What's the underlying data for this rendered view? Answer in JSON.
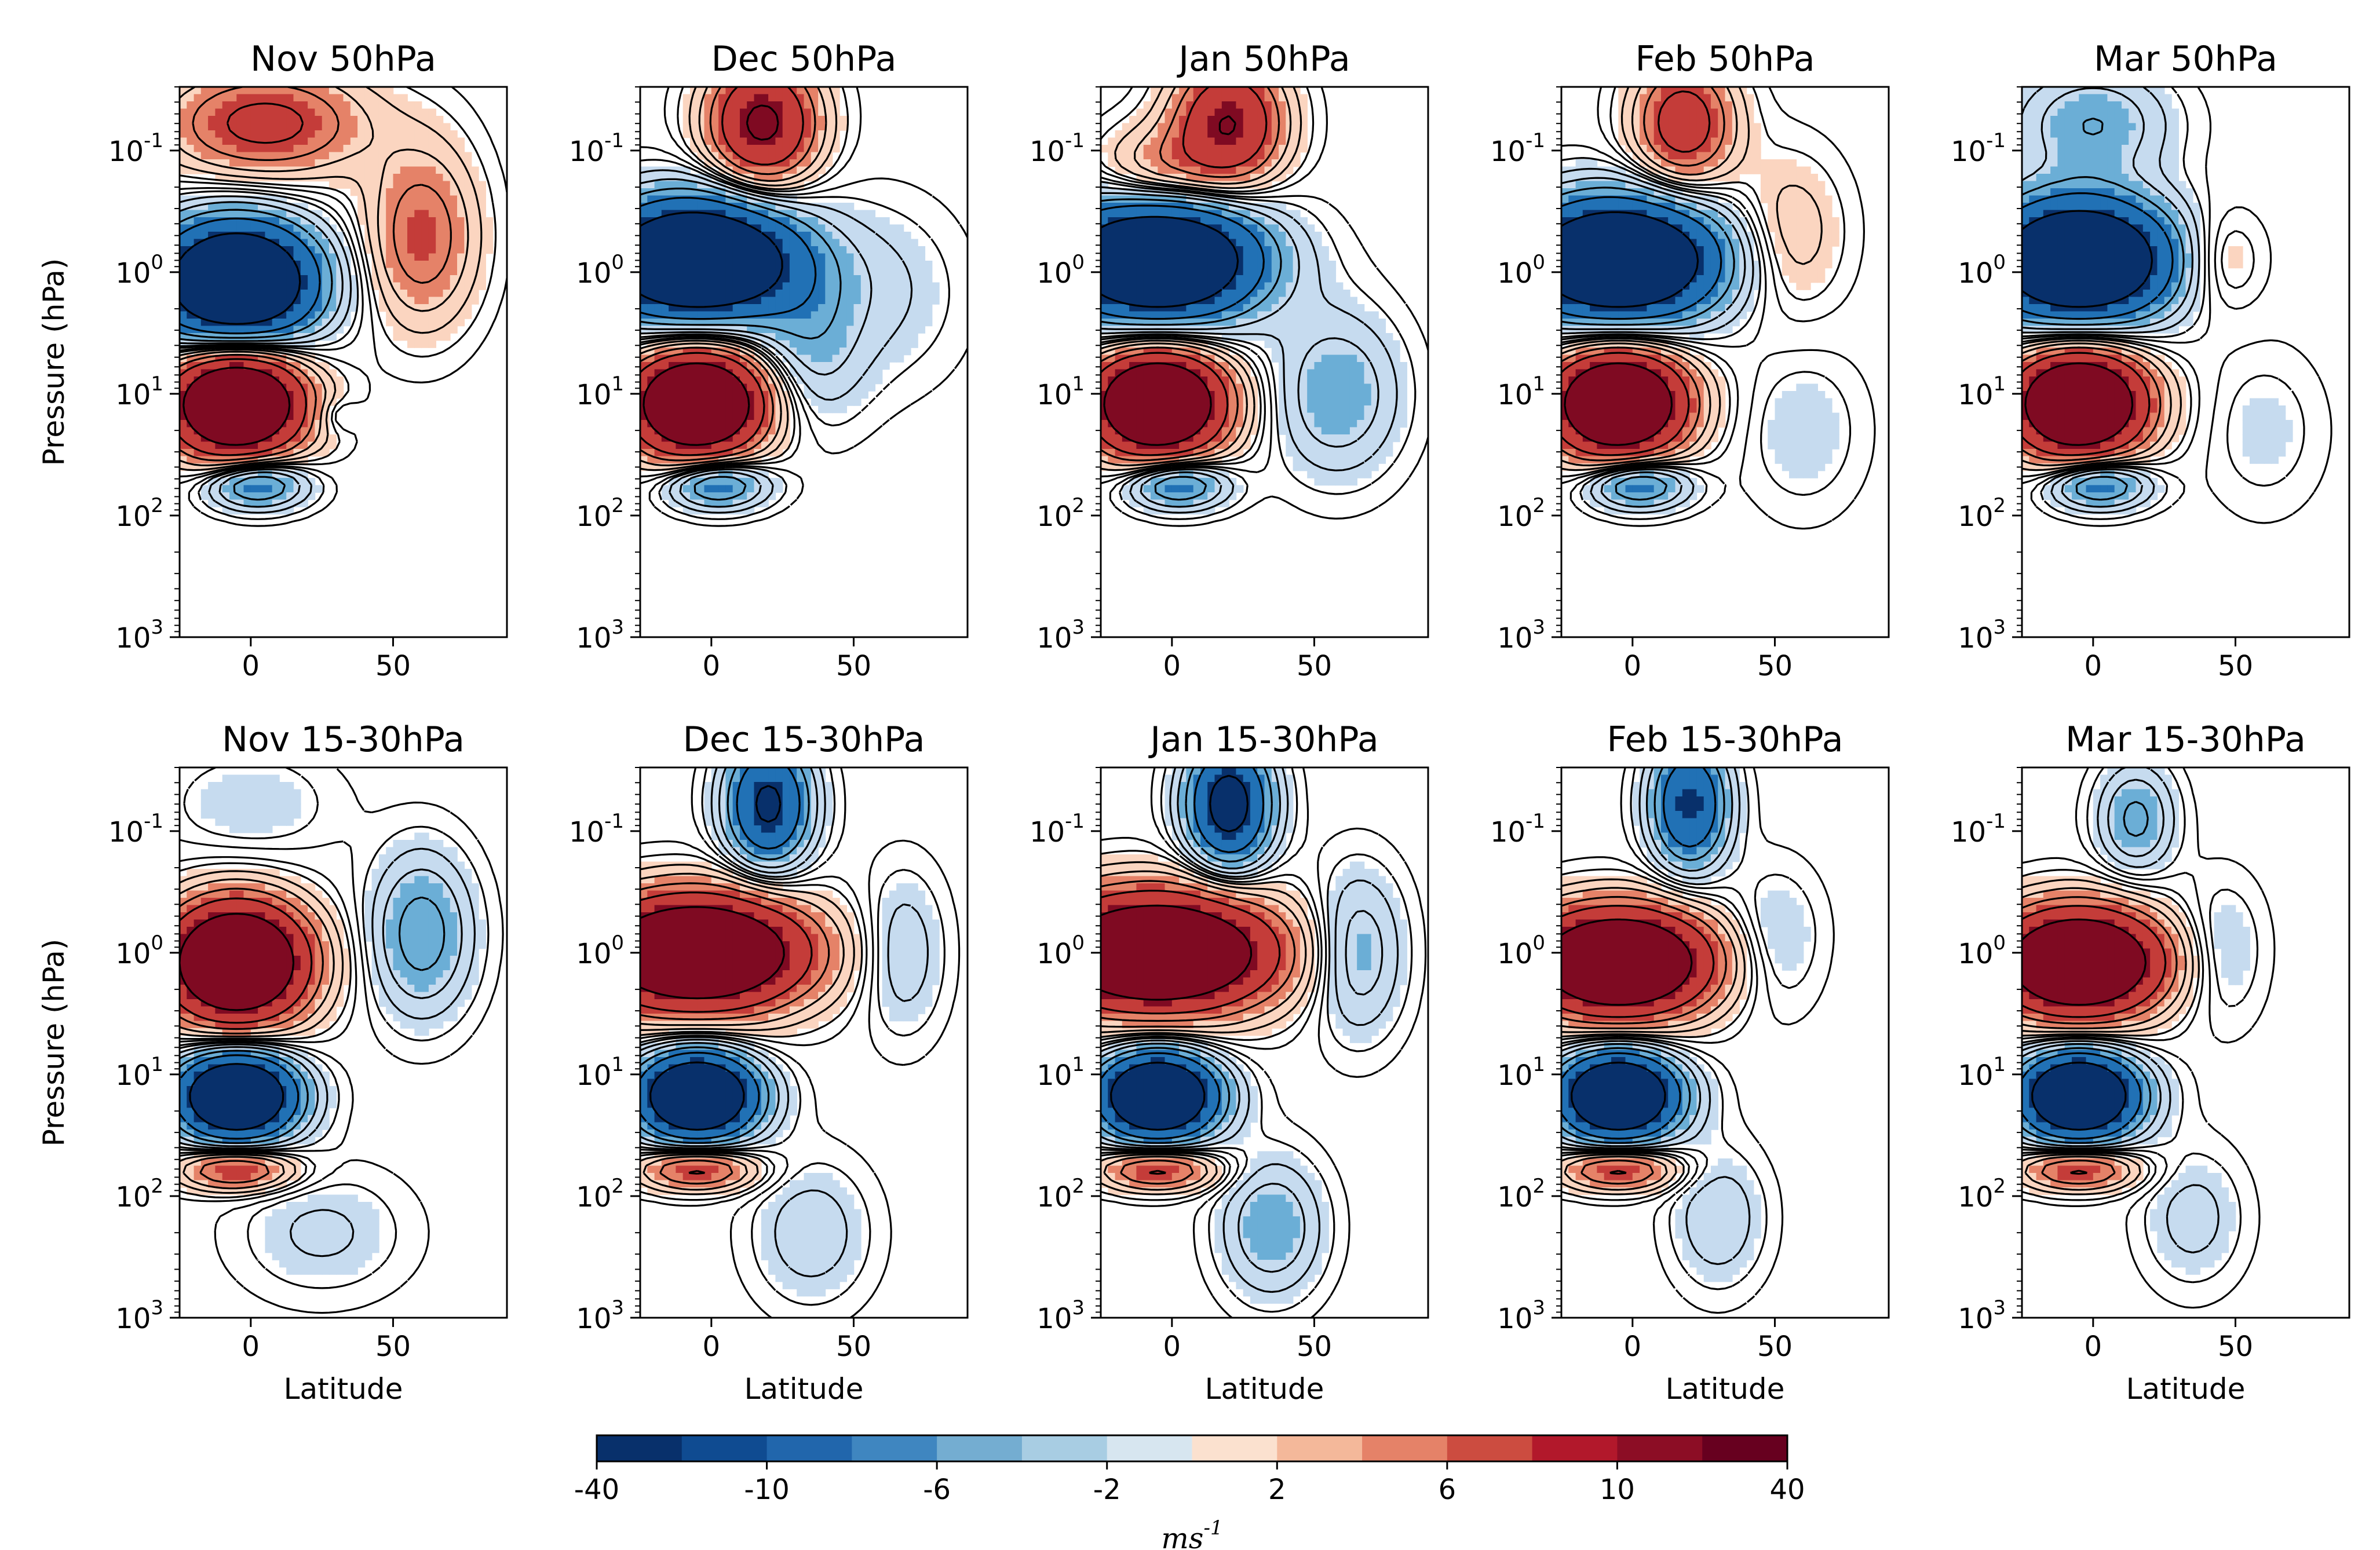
{
  "chart_data": {
    "type": "contour",
    "variable_units_label": "ms",
    "variable_units_exp": "-1",
    "colorbar": {
      "levels": [
        -40,
        -10,
        -6,
        -2,
        2,
        6,
        10,
        40
      ],
      "tick_labels": [
        "-40",
        "-10",
        "-6",
        "-2",
        "2",
        "6",
        "10",
        "40"
      ],
      "colors": [
        "#08306b",
        "#0d4a8f",
        "#2166ac",
        "#4a8cc3",
        "#92c5de",
        "#c6dbef",
        "#e6eff5",
        "#fbe5d6",
        "#f6c3a6",
        "#e8906e",
        "#d6604d",
        "#b2182b",
        "#8c0d25",
        "#67001f"
      ]
    },
    "x_axis": {
      "label": "Latitude",
      "range": [
        -25,
        90
      ],
      "ticks": [
        0,
        50
      ],
      "tick_labels": [
        "0",
        "50"
      ]
    },
    "y_axis": {
      "label": "Pressure (hPa)",
      "scale": "log",
      "inverted": true,
      "range": [
        1000,
        0.03
      ],
      "ticks": [
        0.1,
        1,
        10,
        100,
        1000
      ],
      "tick_labels": [
        [
          "10",
          "-1"
        ],
        [
          "10",
          "0"
        ],
        [
          "10",
          "1"
        ],
        [
          "10",
          "2"
        ],
        [
          "10",
          "3"
        ]
      ]
    },
    "panels": [
      {
        "title": "Nov 50hPa",
        "month": "Nov",
        "forcing": "50hPa",
        "row": 0
      },
      {
        "title": "Dec 50hPa",
        "month": "Dec",
        "forcing": "50hPa",
        "row": 0
      },
      {
        "title": "Jan 50hPa",
        "month": "Jan",
        "forcing": "50hPa",
        "row": 0
      },
      {
        "title": "Feb 50hPa",
        "month": "Feb",
        "forcing": "50hPa",
        "row": 0
      },
      {
        "title": "Mar 50hPa",
        "month": "Mar",
        "forcing": "50hPa",
        "row": 0
      },
      {
        "title": "Nov 15-30hPa",
        "month": "Nov",
        "forcing": "15-30hPa",
        "row": 1
      },
      {
        "title": "Dec 15-30hPa",
        "month": "Dec",
        "forcing": "15-30hPa",
        "row": 1
      },
      {
        "title": "Jan 15-30hPa",
        "month": "Jan",
        "forcing": "15-30hPa",
        "row": 1
      },
      {
        "title": "Feb 15-30hPa",
        "month": "Feb",
        "forcing": "15-30hPa",
        "row": 1
      },
      {
        "title": "Mar 15-30hPa",
        "month": "Mar",
        "forcing": "15-30hPa",
        "row": 1
      }
    ],
    "features": [
      [
        {
          "lat": -5,
          "p": 12,
          "amp": 40,
          "sx": 16,
          "sy": 0.3
        },
        {
          "lat": -5,
          "p": 1.2,
          "amp": -40,
          "sx": 19,
          "sy": 0.34
        },
        {
          "lat": 2,
          "p": 55,
          "amp": -14,
          "sx": 12,
          "sy": 0.14
        },
        {
          "lat": 5,
          "p": 0.06,
          "amp": 14,
          "sx": 24,
          "sy": 0.3
        },
        {
          "lat": 60,
          "p": 0.5,
          "amp": 11,
          "sx": 13,
          "sy": 0.5
        },
        {
          "lat": 30,
          "p": 15,
          "amp": -3,
          "sx": 5,
          "sy": 0.1
        }
      ],
      [
        {
          "lat": -5,
          "p": 12,
          "amp": 40,
          "sx": 16,
          "sy": 0.3
        },
        {
          "lat": -5,
          "p": 0.8,
          "amp": -40,
          "sx": 24,
          "sy": 0.34
        },
        {
          "lat": 2,
          "p": 55,
          "amp": -14,
          "sx": 12,
          "sy": 0.14
        },
        {
          "lat": 18,
          "p": 0.06,
          "amp": 22,
          "sx": 13,
          "sy": 0.35
        },
        {
          "lat": 35,
          "p": 4,
          "amp": -6,
          "sx": 13,
          "sy": 0.45
        },
        {
          "lat": 62,
          "p": 1.5,
          "amp": -3,
          "sx": 18,
          "sy": 0.5
        }
      ],
      [
        {
          "lat": -5,
          "p": 12,
          "amp": 40,
          "sx": 16,
          "sy": 0.3
        },
        {
          "lat": -5,
          "p": 0.8,
          "amp": -40,
          "sx": 24,
          "sy": 0.34
        },
        {
          "lat": 2,
          "p": 55,
          "amp": -14,
          "sx": 12,
          "sy": 0.14
        },
        {
          "lat": 20,
          "p": 0.06,
          "amp": 20,
          "sx": 13,
          "sy": 0.35
        },
        {
          "lat": -5,
          "p": 0.15,
          "amp": 8,
          "sx": 15,
          "sy": 0.25
        },
        {
          "lat": 58,
          "p": 10,
          "amp": -8,
          "sx": 15,
          "sy": 0.45
        }
      ],
      [
        {
          "lat": -5,
          "p": 12,
          "amp": 40,
          "sx": 16,
          "sy": 0.3
        },
        {
          "lat": -5,
          "p": 0.8,
          "amp": -40,
          "sx": 24,
          "sy": 0.34
        },
        {
          "lat": 2,
          "p": 55,
          "amp": -14,
          "sx": 12,
          "sy": 0.14
        },
        {
          "lat": 18,
          "p": 0.06,
          "amp": 16,
          "sx": 12,
          "sy": 0.35
        },
        {
          "lat": 55,
          "p": 0.5,
          "amp": 5,
          "sx": 13,
          "sy": 0.45
        },
        {
          "lat": 60,
          "p": 20,
          "amp": -3,
          "sx": 14,
          "sy": 0.45
        }
      ],
      [
        {
          "lat": -5,
          "p": 12,
          "amp": 40,
          "sx": 16,
          "sy": 0.3
        },
        {
          "lat": -5,
          "p": 0.8,
          "amp": -40,
          "sx": 22,
          "sy": 0.34
        },
        {
          "lat": 2,
          "p": 55,
          "amp": -14,
          "sx": 12,
          "sy": 0.14
        },
        {
          "lat": 45,
          "p": 0.8,
          "amp": 4.5,
          "sx": 10,
          "sy": 0.3
        },
        {
          "lat": 0,
          "p": 0.06,
          "amp": -8,
          "sx": 18,
          "sy": 0.3
        },
        {
          "lat": 60,
          "p": 20,
          "amp": -2.5,
          "sx": 14,
          "sy": 0.45
        }
      ],
      [
        {
          "lat": -5,
          "p": 1.2,
          "amp": 40,
          "sx": 17,
          "sy": 0.34
        },
        {
          "lat": -5,
          "p": 15,
          "amp": -40,
          "sx": 14,
          "sy": 0.24
        },
        {
          "lat": -5,
          "p": 60,
          "amp": 14,
          "sx": 14,
          "sy": 0.12
        },
        {
          "lat": 60,
          "p": 0.7,
          "amp": -10,
          "sx": 12,
          "sy": 0.45
        },
        {
          "lat": 25,
          "p": 200,
          "amp": -3.5,
          "sx": 20,
          "sy": 0.35
        },
        {
          "lat": 0,
          "p": 0.06,
          "amp": -3,
          "sx": 20,
          "sy": 0.3
        }
      ],
      [
        {
          "lat": -5,
          "p": 1.0,
          "amp": 40,
          "sx": 26,
          "sy": 0.32
        },
        {
          "lat": -5,
          "p": 15,
          "amp": -40,
          "sx": 14,
          "sy": 0.24
        },
        {
          "lat": -5,
          "p": 60,
          "amp": 14,
          "sx": 14,
          "sy": 0.12
        },
        {
          "lat": 20,
          "p": 0.06,
          "amp": -22,
          "sx": 10,
          "sy": 0.35
        },
        {
          "lat": 67,
          "p": 1.0,
          "amp": -5,
          "sx": 10,
          "sy": 0.45
        },
        {
          "lat": 35,
          "p": 200,
          "amp": -4.5,
          "sx": 14,
          "sy": 0.4
        }
      ],
      [
        {
          "lat": -5,
          "p": 1.0,
          "amp": 40,
          "sx": 28,
          "sy": 0.33
        },
        {
          "lat": -5,
          "p": 15,
          "amp": -40,
          "sx": 14,
          "sy": 0.24
        },
        {
          "lat": -5,
          "p": 60,
          "amp": 14,
          "sx": 14,
          "sy": 0.12
        },
        {
          "lat": 20,
          "p": 0.06,
          "amp": -25,
          "sx": 10,
          "sy": 0.35
        },
        {
          "lat": 65,
          "p": 1.0,
          "amp": -8,
          "sx": 11,
          "sy": 0.45
        },
        {
          "lat": 35,
          "p": 180,
          "amp": -8,
          "sx": 12,
          "sy": 0.38
        }
      ],
      [
        {
          "lat": -5,
          "p": 1.2,
          "amp": 40,
          "sx": 22,
          "sy": 0.3
        },
        {
          "lat": -5,
          "p": 15,
          "amp": -40,
          "sx": 14,
          "sy": 0.24
        },
        {
          "lat": -5,
          "p": 60,
          "amp": 14,
          "sx": 14,
          "sy": 0.12
        },
        {
          "lat": 20,
          "p": 0.06,
          "amp": -20,
          "sx": 9,
          "sy": 0.35
        },
        {
          "lat": 50,
          "p": 0.8,
          "amp": -4,
          "sx": 11,
          "sy": 0.4
        },
        {
          "lat": 30,
          "p": 150,
          "amp": -5,
          "sx": 11,
          "sy": 0.38
        }
      ],
      [
        {
          "lat": -5,
          "p": 1.2,
          "amp": 40,
          "sx": 20,
          "sy": 0.3
        },
        {
          "lat": -5,
          "p": 15,
          "amp": -40,
          "sx": 14,
          "sy": 0.24
        },
        {
          "lat": -5,
          "p": 60,
          "amp": 14,
          "sx": 14,
          "sy": 0.12
        },
        {
          "lat": 15,
          "p": 0.08,
          "amp": -9,
          "sx": 9,
          "sy": 0.3
        },
        {
          "lat": 45,
          "p": 1.0,
          "amp": -4,
          "sx": 10,
          "sy": 0.4
        },
        {
          "lat": 35,
          "p": 150,
          "amp": -4,
          "sx": 12,
          "sy": 0.38
        }
      ]
    ]
  }
}
